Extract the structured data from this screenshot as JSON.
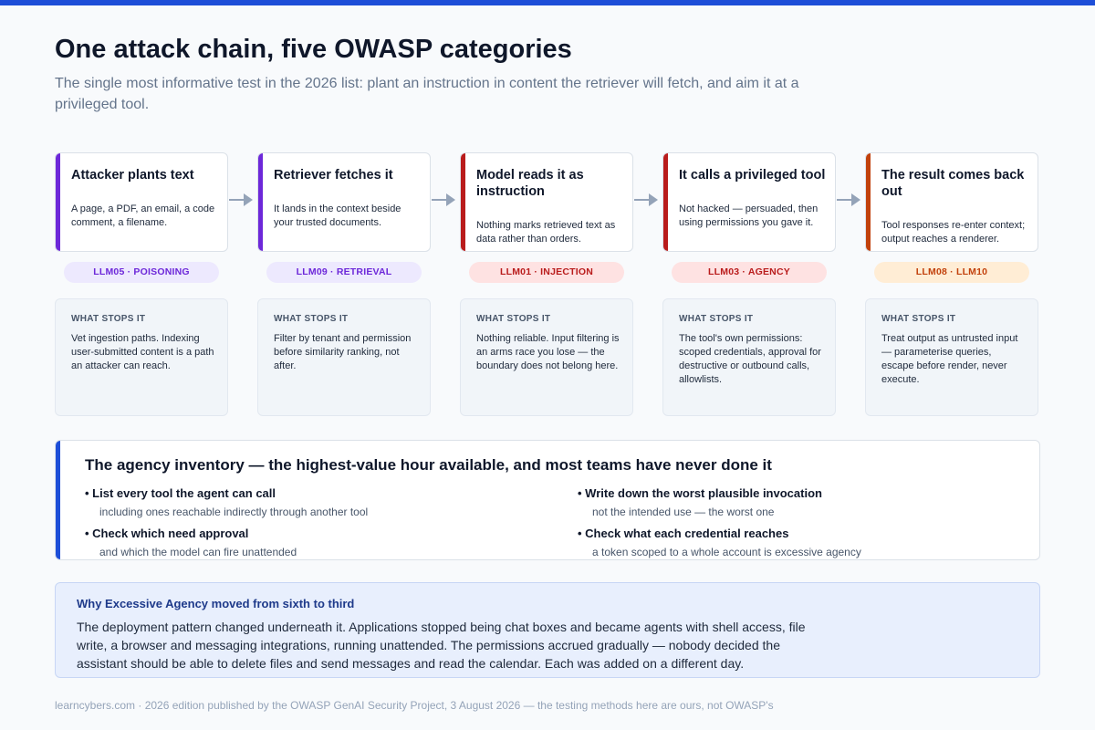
{
  "title": "One attack chain, five OWASP categories",
  "subtitle": "The single most informative test in the 2026 list: plant an instruction in content the retriever will fetch, and aim it at a privileged tool.",
  "colors": {
    "accent": "#1d4ed8",
    "purple": "#6d28d9",
    "red": "#b91c1c",
    "orange": "#c2410c"
  },
  "steps": [
    {
      "title": "Attacker plants text",
      "desc": "A page, a PDF, an email, a code comment, a filename."
    },
    {
      "title": "Retriever fetches it",
      "desc": "It lands in the context beside your trusted documents."
    },
    {
      "title": "Model reads it as instruction",
      "desc": "Nothing marks retrieved text as data rather than orders."
    },
    {
      "title": "It calls a privileged tool",
      "desc": "Not hacked — persuaded, then using permissions you gave it."
    },
    {
      "title": "The result comes back out",
      "desc": "Tool responses re-enter context; output reaches a renderer."
    }
  ],
  "tags": [
    "LLM05 · POISONING",
    "LLM09 · RETRIEVAL",
    "LLM01 · INJECTION",
    "LLM03 · AGENCY",
    "LLM08 · LLM10"
  ],
  "stops": {
    "heading": "WHAT STOPS IT",
    "items": [
      "Vet ingestion paths. Indexing user-submitted content is a path an attacker can reach.",
      "Filter by tenant and permission before similarity ranking, not after.",
      "Nothing reliable. Input filtering is an arms race you lose — the boundary does not belong here.",
      "The tool's own permissions: scoped credentials, approval for destructive or outbound calls, allowlists.",
      "Treat output as untrusted input — parameterise queries, escape before render, never execute."
    ]
  },
  "agency": {
    "heading": "The agency inventory — the highest-value hour available, and most teams have never done it",
    "items": [
      {
        "title": "List every tool the agent can call",
        "desc": "including ones reachable indirectly through another tool"
      },
      {
        "title": "Check which need approval",
        "desc": "and which the model can fire unattended"
      },
      {
        "title": "Write down the worst plausible invocation",
        "desc": "not the intended use — the worst one"
      },
      {
        "title": "Check what each credential reaches",
        "desc": "a token scoped to a whole account is excessive agency"
      }
    ]
  },
  "why": {
    "heading": "Why Excessive Agency moved from sixth to third",
    "body": "The deployment pattern changed underneath it. Applications stopped being chat boxes and became agents with shell access, file write, a browser and messaging integrations, running unattended. The permissions accrued gradually — nobody decided the assistant should be able to delete files and send messages and read the calendar. Each was added on a different day."
  },
  "footer": "learncybers.com · 2026 edition published by the OWASP GenAI Security Project, 3 August 2026 — the testing methods here are ours, not OWASP's"
}
